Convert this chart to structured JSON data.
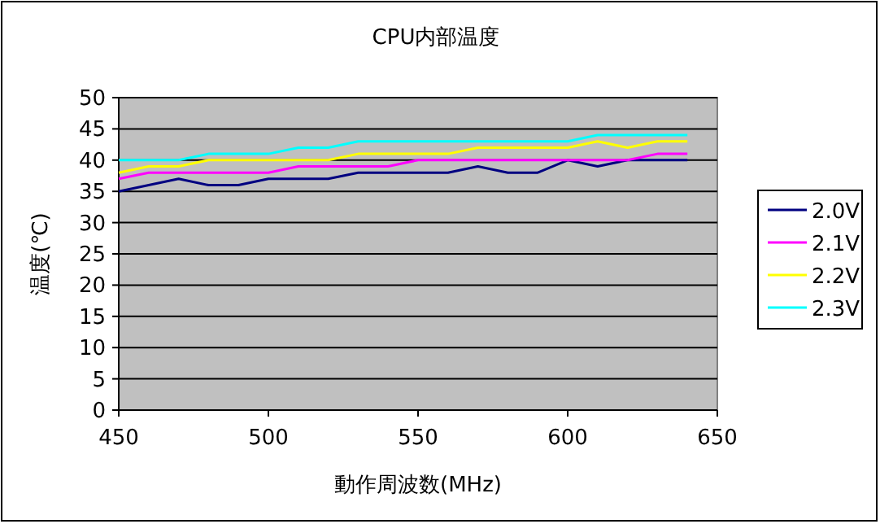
{
  "chart_data": {
    "type": "line",
    "title": "CPU内部温度",
    "xlabel": "動作周波数(MHz)",
    "ylabel": "温度(℃)",
    "x": [
      450,
      460,
      470,
      480,
      490,
      500,
      510,
      520,
      530,
      540,
      550,
      560,
      570,
      580,
      590,
      600,
      610,
      620,
      630,
      640
    ],
    "xlim": [
      450,
      650
    ],
    "xticks": [
      450,
      500,
      550,
      600,
      650
    ],
    "ylim": [
      0,
      50
    ],
    "yticks": [
      0,
      5,
      10,
      15,
      20,
      25,
      30,
      35,
      40,
      45,
      50
    ],
    "grid": "y",
    "legend": "right",
    "marker": "none",
    "line_style": "solid",
    "series": [
      {
        "name": "2.0V",
        "color": "#000080",
        "values": [
          35,
          36,
          37,
          36,
          36,
          37,
          37,
          37,
          38,
          38,
          38,
          38,
          39,
          38,
          38,
          40,
          39,
          40,
          40,
          40
        ]
      },
      {
        "name": "2.1V",
        "color": "#ff00ff",
        "values": [
          37,
          38,
          38,
          38,
          38,
          38,
          39,
          39,
          39,
          39,
          40,
          40,
          40,
          40,
          40,
          40,
          40,
          40,
          41,
          41
        ]
      },
      {
        "name": "2.2V",
        "color": "#ffff00",
        "values": [
          38,
          39,
          39,
          40,
          40,
          40,
          40,
          40,
          41,
          41,
          41,
          41,
          42,
          42,
          42,
          42,
          43,
          42,
          43,
          43
        ]
      },
      {
        "name": "2.3V",
        "color": "#00ffff",
        "values": [
          40,
          40,
          40,
          41,
          41,
          41,
          42,
          42,
          43,
          43,
          43,
          43,
          43,
          43,
          43,
          43,
          44,
          44,
          44,
          44
        ]
      }
    ]
  }
}
